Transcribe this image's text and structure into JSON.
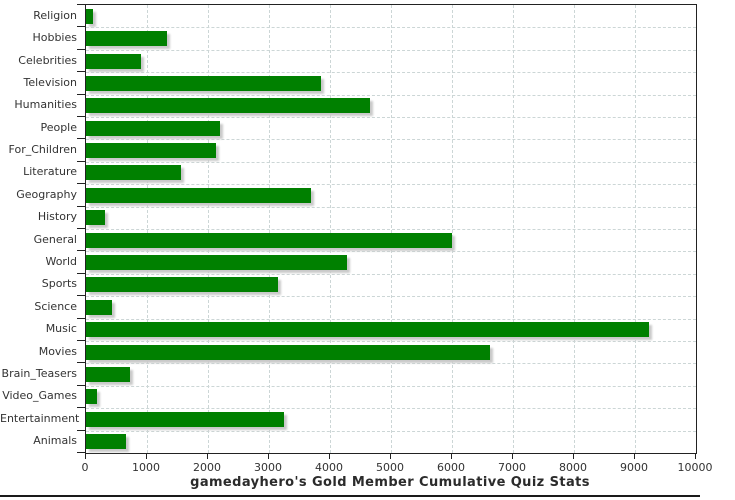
{
  "chart_data": {
    "type": "bar",
    "orientation": "horizontal",
    "title": "gamedayhero's Gold Member Cumulative Quiz Stats",
    "title_position": "bottom",
    "xlabel": "",
    "ylabel": "",
    "categories": [
      "Religion",
      "Hobbies",
      "Celebrities",
      "Television",
      "Humanities",
      "People",
      "For_Children",
      "Literature",
      "Geography",
      "History",
      "General",
      "World",
      "Sports",
      "Science",
      "Music",
      "Movies",
      "Brain_Teasers",
      "Video_Games",
      "Entertainment",
      "Animals"
    ],
    "values": [
      120,
      1330,
      900,
      3860,
      4650,
      2200,
      2130,
      1550,
      3690,
      310,
      6000,
      4280,
      3140,
      420,
      9230,
      6620,
      720,
      180,
      3250,
      660
    ],
    "xlim": [
      0,
      10000
    ],
    "x_ticks": [
      0,
      1000,
      2000,
      3000,
      4000,
      5000,
      6000,
      7000,
      8000,
      9000,
      10000
    ],
    "grid": true,
    "legend": false,
    "bar_color": "#008000",
    "bar_shadow_color": "#c9c9c9",
    "grid_color": "#ccd6d6",
    "axis_color": "#222222",
    "tick_label_color": "#333333",
    "title_color": "#2b2b2b",
    "background_color": "#ffffff"
  }
}
